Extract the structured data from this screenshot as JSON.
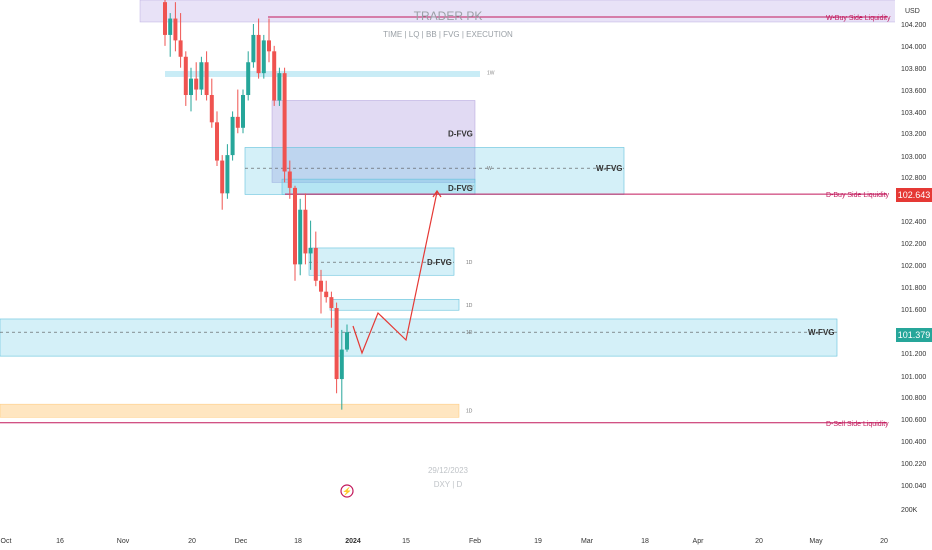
{
  "header": {
    "title": "TRADER PK",
    "subtitle": "TIME  |  LQ  |  BB  |  FVG  |  EXECUTION"
  },
  "footer": {
    "date": "29/12/2023",
    "symbol": "DXY | D"
  },
  "colors": {
    "up": "#26a69a",
    "down": "#ef5350",
    "liquidity": "#c2185b",
    "fvg_fill": "rgba(100,200,230,0.28)",
    "fvg_edge": "#63c2dc",
    "dfvg_purple": "rgba(170,150,220,0.35)",
    "sell_zone": "rgba(255,183,77,0.35)",
    "projection": "#e53935",
    "price_badge": "#26a69a",
    "level_badge": "#e53935"
  },
  "chart_data": {
    "type": "candlestick",
    "currency": "USD",
    "y_ticks": [
      "104.200",
      "104.000",
      "103.800",
      "103.600",
      "103.400",
      "103.200",
      "103.000",
      "102.800",
      "102.600",
      "102.400",
      "102.200",
      "102.000",
      "101.800",
      "101.600",
      "101.400",
      "101.200",
      "101.000",
      "100.800",
      "100.600",
      "100.400",
      "100.220",
      "100.040",
      "200K"
    ],
    "x_ticks": [
      "Oct",
      "16",
      "Nov",
      "20",
      "Dec",
      "18",
      "2024",
      "15",
      "Feb",
      "19",
      "Mar",
      "18",
      "Apr",
      "20",
      "May",
      "20"
    ],
    "current_price": "101.379",
    "level_price": "102.643",
    "candles": [
      {
        "o": 104.4,
        "h": 104.5,
        "l": 104.0,
        "c": 104.1
      },
      {
        "o": 104.1,
        "h": 104.3,
        "l": 103.9,
        "c": 104.25
      },
      {
        "o": 104.25,
        "h": 104.4,
        "l": 103.95,
        "c": 104.05
      },
      {
        "o": 104.05,
        "h": 104.3,
        "l": 103.8,
        "c": 103.9
      },
      {
        "o": 103.9,
        "h": 103.95,
        "l": 103.45,
        "c": 103.55
      },
      {
        "o": 103.55,
        "h": 103.8,
        "l": 103.4,
        "c": 103.7
      },
      {
        "o": 103.7,
        "h": 103.85,
        "l": 103.5,
        "c": 103.6
      },
      {
        "o": 103.6,
        "h": 103.9,
        "l": 103.55,
        "c": 103.85
      },
      {
        "o": 103.85,
        "h": 103.95,
        "l": 103.5,
        "c": 103.55
      },
      {
        "o": 103.55,
        "h": 103.7,
        "l": 103.25,
        "c": 103.3
      },
      {
        "o": 103.3,
        "h": 103.4,
        "l": 102.9,
        "c": 102.95
      },
      {
        "o": 102.95,
        "h": 103.0,
        "l": 102.5,
        "c": 102.65
      },
      {
        "o": 102.65,
        "h": 103.1,
        "l": 102.6,
        "c": 103.0
      },
      {
        "o": 103.0,
        "h": 103.4,
        "l": 102.95,
        "c": 103.35
      },
      {
        "o": 103.35,
        "h": 103.6,
        "l": 103.2,
        "c": 103.25
      },
      {
        "o": 103.25,
        "h": 103.6,
        "l": 103.2,
        "c": 103.55
      },
      {
        "o": 103.55,
        "h": 103.95,
        "l": 103.5,
        "c": 103.85
      },
      {
        "o": 103.85,
        "h": 104.2,
        "l": 103.8,
        "c": 104.1
      },
      {
        "o": 104.1,
        "h": 104.25,
        "l": 103.7,
        "c": 103.75
      },
      {
        "o": 103.75,
        "h": 104.1,
        "l": 103.7,
        "c": 104.05
      },
      {
        "o": 104.05,
        "h": 104.25,
        "l": 103.85,
        "c": 103.95
      },
      {
        "o": 103.95,
        "h": 104.0,
        "l": 103.45,
        "c": 103.5
      },
      {
        "o": 103.5,
        "h": 103.8,
        "l": 103.45,
        "c": 103.75
      },
      {
        "o": 103.75,
        "h": 103.8,
        "l": 102.75,
        "c": 102.85
      },
      {
        "o": 102.85,
        "h": 102.95,
        "l": 102.6,
        "c": 102.7
      },
      {
        "o": 102.7,
        "h": 102.72,
        "l": 101.85,
        "c": 102.0
      },
      {
        "o": 102.0,
        "h": 102.6,
        "l": 101.9,
        "c": 102.5
      },
      {
        "o": 102.5,
        "h": 102.65,
        "l": 102.0,
        "c": 102.1
      },
      {
        "o": 102.1,
        "h": 102.4,
        "l": 101.95,
        "c": 102.15
      },
      {
        "o": 102.15,
        "h": 102.3,
        "l": 101.8,
        "c": 101.85
      },
      {
        "o": 101.85,
        "h": 101.95,
        "l": 101.55,
        "c": 101.75
      },
      {
        "o": 101.75,
        "h": 101.85,
        "l": 101.65,
        "c": 101.7
      },
      {
        "o": 101.7,
        "h": 101.75,
        "l": 101.42,
        "c": 101.6
      },
      {
        "o": 101.6,
        "h": 101.65,
        "l": 100.82,
        "c": 100.95
      },
      {
        "o": 100.95,
        "h": 101.4,
        "l": 100.67,
        "c": 101.22
      },
      {
        "o": 101.22,
        "h": 101.45,
        "l": 101.2,
        "c": 101.379
      }
    ],
    "annotations": [
      {
        "label": "D-FVG",
        "top": 103.5,
        "bottom": 102.75,
        "purple": true
      },
      {
        "label": "W-FVG",
        "top": 103.07,
        "bottom": 102.64,
        "mid": 102.88,
        "tf": "W"
      },
      {
        "label": "D-FVG",
        "top": 102.78,
        "bottom": 102.64,
        "tf": "1W"
      },
      {
        "label": "D-FVG",
        "top": 102.15,
        "bottom": 101.9,
        "mid": 102.02,
        "tf": "1D"
      },
      {
        "label": "",
        "top": 101.68,
        "bottom": 101.58,
        "tf": "1D"
      },
      {
        "label": "W-FVG",
        "top": 101.5,
        "bottom": 101.16,
        "mid": 101.379,
        "tf": "1D"
      },
      {
        "label": "",
        "top": 100.72,
        "bottom": 100.6,
        "tf": "1D",
        "sell": true
      }
    ],
    "liquidity_levels": [
      {
        "label": "W-Buy Side Liquidity",
        "price": 104.3
      },
      {
        "label": "D-Buy Side Liquidity",
        "price": 102.643
      },
      {
        "label": "D-Sell Side Liquidity",
        "price": 100.55
      }
    ],
    "projection": [
      101.38,
      101.6,
      101.2,
      101.58,
      101.25,
      102.72
    ],
    "tf_labels": [
      "1W",
      "1W",
      "1D",
      "1D",
      "1D",
      "1D"
    ]
  }
}
